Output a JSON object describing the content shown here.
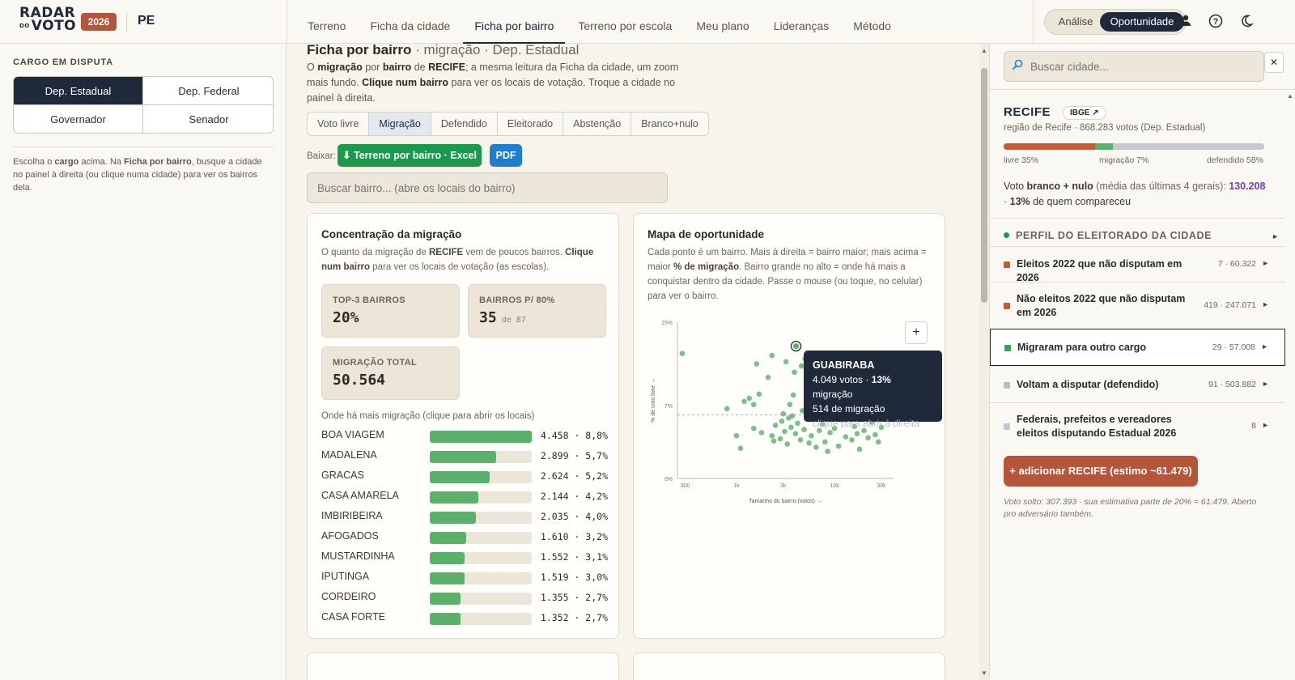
{
  "header": {
    "logo_line1": "RADAR",
    "logo_line2": "VOTO",
    "logo_small": "DO",
    "year": "2026",
    "state": "PE",
    "tabs": [
      "Terreno",
      "Ficha da cidade",
      "Ficha por bairro",
      "Terreno por escola",
      "Meu plano",
      "Lideranças",
      "Método"
    ],
    "active_tab": 2,
    "mode_toggle": [
      "Análise",
      "Oportunidade"
    ],
    "mode_selected": 1,
    "icons": [
      "user-icon",
      "help-icon",
      "moon-icon"
    ]
  },
  "sidebar": {
    "caption": "CARGO EM DISPUTA",
    "cargos": [
      "Dep. Estadual",
      "Dep. Federal",
      "Governador",
      "Senador"
    ],
    "selected": 0,
    "help_parts": [
      "Escolha o ",
      "cargo",
      " acima. Na ",
      "Ficha por bairro",
      ", busque a cidade no painel à direita (ou clique numa cidade) para ver os bairros dela."
    ]
  },
  "main": {
    "title": "Ficha por bairro",
    "title_sub": " · migração · Dep. Estadual",
    "desc_parts": [
      "O ",
      "migração",
      " por ",
      "bairro",
      " de ",
      "RECIFE",
      "; a mesma leitura da Ficha da cidade, um zoom mais fundo. ",
      "Clique num bairro",
      " para ver os locais de votação. Troque a cidade no painel à direita."
    ],
    "metric_tabs": [
      "Voto livre",
      "Migração",
      "Defendido",
      "Eleitorado",
      "Abstenção",
      "Branco+nulo"
    ],
    "metric_selected": 1,
    "download_label": "Baixar:",
    "btn_excel": "⬇ Terreno por bairro · Excel",
    "btn_pdf": "PDF",
    "bairro_placeholder": "Buscar bairro... (abre os locais do bairro)",
    "concentration": {
      "title": "Concentração da migração",
      "desc_parts": [
        "O quanto da migração de ",
        "RECIFE",
        " vem de poucos bairros. ",
        "Clique num bairro",
        " para ver os locais de votação (as escolas)."
      ],
      "top3_label": "TOP-3 BAIRROS",
      "top3_value": "20%",
      "p80_label": "BAIRROS P/ 80%",
      "p80_value": "35",
      "p80_of": "de 87",
      "total_label": "MIGRAÇÃO TOTAL",
      "total_value": "50.564",
      "list_header": "Onde há mais migração (clique para abrir os locais)",
      "rows": [
        {
          "name": "BOA VIAGEM",
          "value": "4.458 · 8,8%",
          "frac": 1.0
        },
        {
          "name": "MADALENA",
          "value": "2.899 · 5,7%",
          "frac": 0.65
        },
        {
          "name": "GRACAS",
          "value": "2.624 · 5,2%",
          "frac": 0.59
        },
        {
          "name": "CASA AMARELA",
          "value": "2.144 · 4,2%",
          "frac": 0.48
        },
        {
          "name": "IMBIRIBEIRA",
          "value": "2.035 · 4,0%",
          "frac": 0.455
        },
        {
          "name": "AFOGADOS",
          "value": "1.610 · 3,2%",
          "frac": 0.36
        },
        {
          "name": "MUSTARDINHA",
          "value": "1.552 · 3,1%",
          "frac": 0.345
        },
        {
          "name": "IPUTINGA",
          "value": "1.519 · 3,0%",
          "frac": 0.34
        },
        {
          "name": "CORDEIRO",
          "value": "1.355 · 2,7%",
          "frac": 0.305
        },
        {
          "name": "CASA FORTE",
          "value": "1.352 · 2,7%",
          "frac": 0.3
        }
      ]
    },
    "opportunity": {
      "title": "Mapa de oportunidade",
      "desc_parts": [
        "Cada ponto é um bairro. Mais à direita = bairro maior; mais acima = maior ",
        "% de migração",
        ". Bairro grande no alto = onde há mais a conquistar dentro da cidade. Passe o mouse (ou toque, no celular) para ver o bairro."
      ],
      "zoom_label": "+",
      "tooltip": {
        "name": "GUABIRABA",
        "line1_a": "4.049 votos · ",
        "line1_b": "13%",
        "line1_c": " migração",
        "line2": "514 de migração",
        "hint": "clique para abrir à direita"
      }
    }
  },
  "chart_data": {
    "type": "scatter",
    "xlabel": "Tamanho do bairro (votos) →",
    "ylabel": "% de voto livre →",
    "x_scale": "log",
    "x_ticks": [
      300,
      1000,
      3000,
      10000,
      30000
    ],
    "x_tick_labels": [
      "300",
      "1k",
      "3k",
      "10k",
      "30k"
    ],
    "y_ticks": [
      0,
      7,
      15
    ],
    "y_tick_labels": [
      "0%",
      "7%",
      "15%"
    ],
    "ylim": [
      0,
      15
    ],
    "reference_line_y": 6.1,
    "highlight": {
      "x": 4049,
      "y": 12.7
    },
    "points": [
      {
        "x": 280,
        "y": 12
      },
      {
        "x": 1000,
        "y": 4.1
      },
      {
        "x": 1100,
        "y": 2.9
      },
      {
        "x": 1500,
        "y": 4.8
      },
      {
        "x": 800,
        "y": 6.7
      },
      {
        "x": 1200,
        "y": 7.4
      },
      {
        "x": 1350,
        "y": 7.7
      },
      {
        "x": 1700,
        "y": 8.1
      },
      {
        "x": 1800,
        "y": 4.4
      },
      {
        "x": 1500,
        "y": 7.1
      },
      {
        "x": 2100,
        "y": 9.7
      },
      {
        "x": 2300,
        "y": 4.1
      },
      {
        "x": 2400,
        "y": 3.6
      },
      {
        "x": 2500,
        "y": 5.1
      },
      {
        "x": 2800,
        "y": 3.8
      },
      {
        "x": 2900,
        "y": 5.5
      },
      {
        "x": 3000,
        "y": 6.2
      },
      {
        "x": 3100,
        "y": 4.5
      },
      {
        "x": 3300,
        "y": 3.3
      },
      {
        "x": 3400,
        "y": 5.8
      },
      {
        "x": 3500,
        "y": 7.1
      },
      {
        "x": 3600,
        "y": 4.9
      },
      {
        "x": 3700,
        "y": 6.0
      },
      {
        "x": 3800,
        "y": 8.0
      },
      {
        "x": 4000,
        "y": 4.3
      },
      {
        "x": 4200,
        "y": 5.3
      },
      {
        "x": 4500,
        "y": 3.7
      },
      {
        "x": 4700,
        "y": 6.5
      },
      {
        "x": 4900,
        "y": 4.7
      },
      {
        "x": 5200,
        "y": 5.7
      },
      {
        "x": 5500,
        "y": 3.4
      },
      {
        "x": 5800,
        "y": 4.1
      },
      {
        "x": 6000,
        "y": 6.8
      },
      {
        "x": 6500,
        "y": 3.0
      },
      {
        "x": 7000,
        "y": 4.6
      },
      {
        "x": 7500,
        "y": 5.2
      },
      {
        "x": 8000,
        "y": 3.5
      },
      {
        "x": 8500,
        "y": 2.6
      },
      {
        "x": 9000,
        "y": 4.4
      },
      {
        "x": 9500,
        "y": 6.3
      },
      {
        "x": 10000,
        "y": 4.8
      },
      {
        "x": 11000,
        "y": 3.1
      },
      {
        "x": 12000,
        "y": 5.6
      },
      {
        "x": 13000,
        "y": 4.0
      },
      {
        "x": 14000,
        "y": 6.9
      },
      {
        "x": 15000,
        "y": 3.7
      },
      {
        "x": 16000,
        "y": 5.0
      },
      {
        "x": 17000,
        "y": 4.3
      },
      {
        "x": 18000,
        "y": 2.8
      },
      {
        "x": 19000,
        "y": 6.1
      },
      {
        "x": 20000,
        "y": 4.6
      },
      {
        "x": 22000,
        "y": 3.9
      },
      {
        "x": 24000,
        "y": 5.4
      },
      {
        "x": 26000,
        "y": 4.2
      },
      {
        "x": 28000,
        "y": 3.5
      },
      {
        "x": 30000,
        "y": 4.9
      },
      {
        "x": 32000,
        "y": 5.8
      },
      {
        "x": 3900,
        "y": 10.2
      },
      {
        "x": 4600,
        "y": 10.8
      },
      {
        "x": 5000,
        "y": 11.5
      },
      {
        "x": 1600,
        "y": 11.0
      },
      {
        "x": 2300,
        "y": 11.8
      },
      {
        "x": 3200,
        "y": 11.2
      },
      {
        "x": 6100,
        "y": 9.2
      },
      {
        "x": 7200,
        "y": 10.0
      },
      {
        "x": 8300,
        "y": 11.6
      },
      {
        "x": 9800,
        "y": 8.5
      },
      {
        "x": 11500,
        "y": 11.7
      },
      {
        "x": 13500,
        "y": 9.8
      },
      {
        "x": 16500,
        "y": 10.6
      },
      {
        "x": 21000,
        "y": 8.8
      },
      {
        "x": 25000,
        "y": 9.6
      }
    ]
  },
  "right_panel": {
    "search_placeholder": "Buscar cidade...",
    "close_label": "✕",
    "city": "RECIFE",
    "ibge_label": "IBGE ↗",
    "city_meta": "região de Recife · 868.283 votos (Dep. Estadual)",
    "ratio": {
      "livre": 0.35,
      "migracao": 0.07,
      "defendido": 0.58
    },
    "ratio_labels": [
      "livre 35%",
      "migração 7%",
      "defendido 58%"
    ],
    "voto_parts": [
      "Voto ",
      "branco + nulo",
      " (média das últimas 4 gerais): ",
      "130.208",
      " · ",
      "13%",
      " de quem compareceu"
    ],
    "perfil_header": "PERFIL DO ELEITORADO DA CIDADE",
    "perfil_rows": [
      {
        "label": "Eleitos 2022 que não disputam em 2026",
        "count": "7 · 60.322",
        "color": "#c65a35"
      },
      {
        "label": "Não eleitos 2022 que não disputam em 2026",
        "count": "419 · 247.071",
        "color": "#c65a35"
      },
      {
        "label": "Migraram para outro cargo",
        "count": "29 · 57.008",
        "color": "#3aa05a"
      },
      {
        "label": "Voltam a disputar (defendido)",
        "count": "91 · 503.882",
        "color": "#b9bcc3"
      },
      {
        "label": "Federais, prefeitos e vereadores eleitos disputando Estadual 2026",
        "count": "8",
        "color": "#c7c3d6"
      }
    ],
    "highlighted_row": 2,
    "add_button": "+ adicionar RECIFE (estimo ~61.479)",
    "footnote": "Voto solto: 307.393 · sua estimativa parte de 20% = 61.479. Aberto pro adversário também."
  }
}
